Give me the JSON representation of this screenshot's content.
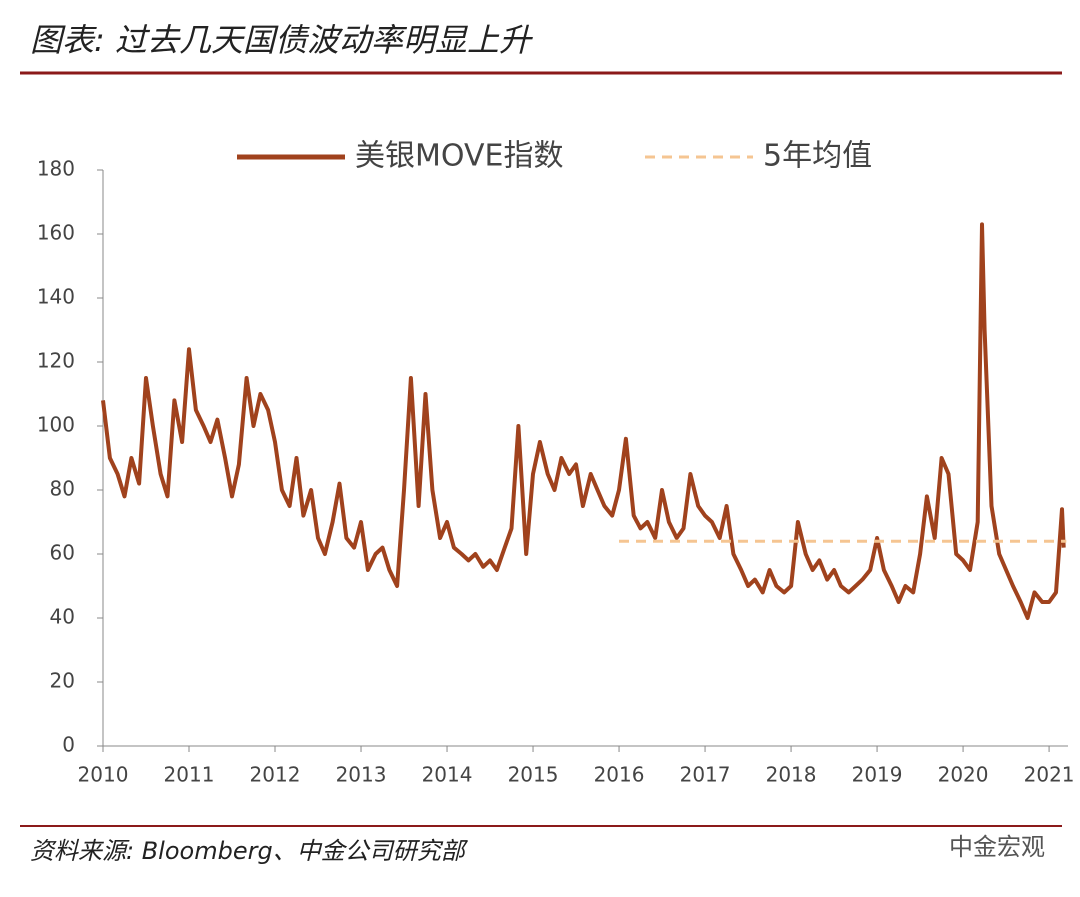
{
  "chart_data": {
    "type": "line",
    "title": "图表: 过去几天国债波动率明显上升",
    "source": "资料来源: Bloomberg、中金公司研究部",
    "watermark": "中金宏观",
    "xlim": [
      2010,
      2021.22
    ],
    "xticks": [
      2010,
      2011,
      2012,
      2013,
      2014,
      2015,
      2016,
      2017,
      2018,
      2019,
      2020,
      2021
    ],
    "ylim": [
      0,
      180
    ],
    "yticks": [
      0,
      20,
      40,
      60,
      80,
      100,
      120,
      140,
      160,
      180
    ],
    "series": [
      {
        "name": "美银MOVE指数",
        "color": "#a0421d",
        "style": "solid",
        "x": [
          2010,
          2010.08,
          2010.17,
          2010.25,
          2010.33,
          2010.42,
          2010.5,
          2010.58,
          2010.67,
          2010.75,
          2010.83,
          2010.92,
          2011,
          2011.08,
          2011.17,
          2011.25,
          2011.33,
          2011.42,
          2011.5,
          2011.58,
          2011.67,
          2011.75,
          2011.83,
          2011.92,
          2012,
          2012.08,
          2012.17,
          2012.25,
          2012.33,
          2012.42,
          2012.5,
          2012.58,
          2012.67,
          2012.75,
          2012.83,
          2012.92,
          2013,
          2013.08,
          2013.17,
          2013.25,
          2013.33,
          2013.42,
          2013.5,
          2013.58,
          2013.67,
          2013.75,
          2013.83,
          2013.92,
          2014,
          2014.08,
          2014.17,
          2014.25,
          2014.33,
          2014.42,
          2014.5,
          2014.58,
          2014.67,
          2014.75,
          2014.83,
          2014.92,
          2015,
          2015.08,
          2015.17,
          2015.25,
          2015.33,
          2015.42,
          2015.5,
          2015.58,
          2015.67,
          2015.75,
          2015.83,
          2015.92,
          2016,
          2016.08,
          2016.17,
          2016.25,
          2016.33,
          2016.42,
          2016.5,
          2016.58,
          2016.67,
          2016.75,
          2016.83,
          2016.92,
          2017,
          2017.08,
          2017.17,
          2017.25,
          2017.33,
          2017.42,
          2017.5,
          2017.58,
          2017.67,
          2017.75,
          2017.83,
          2017.92,
          2018,
          2018.08,
          2018.17,
          2018.25,
          2018.33,
          2018.42,
          2018.5,
          2018.58,
          2018.67,
          2018.75,
          2018.83,
          2018.92,
          2019,
          2019.08,
          2019.17,
          2019.25,
          2019.33,
          2019.42,
          2019.5,
          2019.58,
          2019.67,
          2019.75,
          2019.83,
          2019.92,
          2020,
          2020.08,
          2020.17,
          2020.22,
          2020.25,
          2020.33,
          2020.42,
          2020.5,
          2020.58,
          2020.67,
          2020.75,
          2020.83,
          2020.92,
          2021,
          2021.08,
          2021.15,
          2021.17
        ],
        "values": [
          108,
          90,
          85,
          78,
          90,
          82,
          115,
          100,
          85,
          78,
          108,
          95,
          124,
          105,
          100,
          95,
          102,
          90,
          78,
          88,
          115,
          100,
          110,
          105,
          95,
          80,
          75,
          90,
          72,
          80,
          65,
          60,
          70,
          82,
          65,
          62,
          70,
          55,
          60,
          62,
          55,
          50,
          80,
          115,
          75,
          110,
          80,
          65,
          70,
          62,
          60,
          58,
          60,
          56,
          58,
          55,
          62,
          68,
          100,
          60,
          85,
          95,
          85,
          80,
          90,
          85,
          88,
          75,
          85,
          80,
          75,
          72,
          80,
          96,
          72,
          68,
          70,
          65,
          80,
          70,
          65,
          68,
          85,
          75,
          72,
          70,
          65,
          75,
          60,
          55,
          50,
          52,
          48,
          55,
          50,
          48,
          50,
          70,
          60,
          55,
          58,
          52,
          55,
          50,
          48,
          50,
          52,
          55,
          65,
          55,
          50,
          45,
          50,
          48,
          60,
          78,
          65,
          90,
          85,
          60,
          58,
          55,
          70,
          163,
          130,
          75,
          60,
          55,
          50,
          45,
          40,
          48,
          45,
          45,
          48,
          74,
          62
        ]
      },
      {
        "name": "5年均值",
        "color": "#f5c592",
        "style": "dashed",
        "x": [
          2016,
          2021.2
        ],
        "values": [
          64,
          64
        ]
      }
    ]
  }
}
